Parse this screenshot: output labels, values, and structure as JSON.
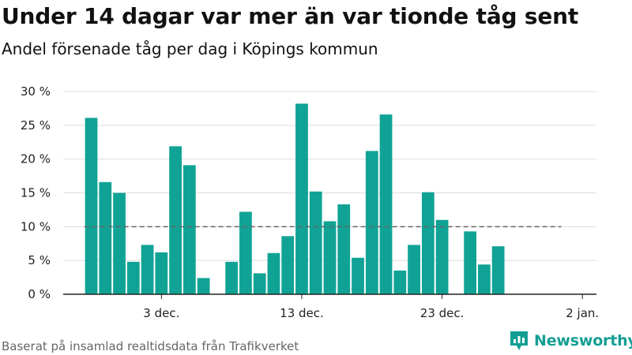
{
  "title": "Under 14 dagar var mer än var tionde tåg sent",
  "subtitle": "Andel försenade tåg per dag i Köpings kommun",
  "source": "Baserat på insamlad realtidsdata från Trafikverket",
  "brand": "Newsworthy",
  "colors": {
    "bar": "#10a395",
    "reference_line": "#666666",
    "grid": "#dddddd",
    "brand": "#139e93"
  },
  "chart_data": {
    "type": "bar",
    "x_start": "2024-11-26",
    "x_end": "2025-01-03",
    "ylim": [
      0,
      30
    ],
    "yticks": [
      {
        "value": 0,
        "label": "0 %"
      },
      {
        "value": 5,
        "label": "5 %"
      },
      {
        "value": 10,
        "label": "10 %"
      },
      {
        "value": 15,
        "label": "15 %"
      },
      {
        "value": 20,
        "label": "20 %"
      },
      {
        "value": 25,
        "label": "25 %"
      },
      {
        "value": 30,
        "label": "30 %"
      }
    ],
    "xticks": [
      {
        "x": "2024-12-03",
        "label": "3 dec."
      },
      {
        "x": "2024-12-13",
        "label": "13 dec."
      },
      {
        "x": "2024-12-23",
        "label": "23 dec."
      },
      {
        "x": "2025-01-02",
        "label": "2 jan."
      }
    ],
    "reference_line": {
      "y": 10,
      "x_from": "2024-11-28",
      "x_to": "2024-12-31"
    },
    "x": [
      "2024-11-28",
      "2024-11-29",
      "2024-11-30",
      "2024-12-01",
      "2024-12-02",
      "2024-12-03",
      "2024-12-04",
      "2024-12-05",
      "2024-12-06",
      "2024-12-07",
      "2024-12-08",
      "2024-12-09",
      "2024-12-10",
      "2024-12-11",
      "2024-12-12",
      "2024-12-13",
      "2024-12-14",
      "2024-12-15",
      "2024-12-16",
      "2024-12-17",
      "2024-12-18",
      "2024-12-19",
      "2024-12-20",
      "2024-12-21",
      "2024-12-22",
      "2024-12-23",
      "2024-12-24",
      "2024-12-25",
      "2024-12-26",
      "2024-12-27",
      "2024-12-28",
      "2024-12-29",
      "2024-12-30",
      "2024-12-31"
    ],
    "values": [
      26.1,
      16.6,
      15.0,
      4.8,
      7.3,
      6.2,
      21.9,
      19.1,
      2.4,
      null,
      4.8,
      12.2,
      3.1,
      6.1,
      8.6,
      28.2,
      15.2,
      10.8,
      13.3,
      5.4,
      21.2,
      26.6,
      3.5,
      7.3,
      15.1,
      11.0,
      null,
      9.3,
      4.4,
      7.1,
      null,
      null,
      null,
      null
    ]
  }
}
